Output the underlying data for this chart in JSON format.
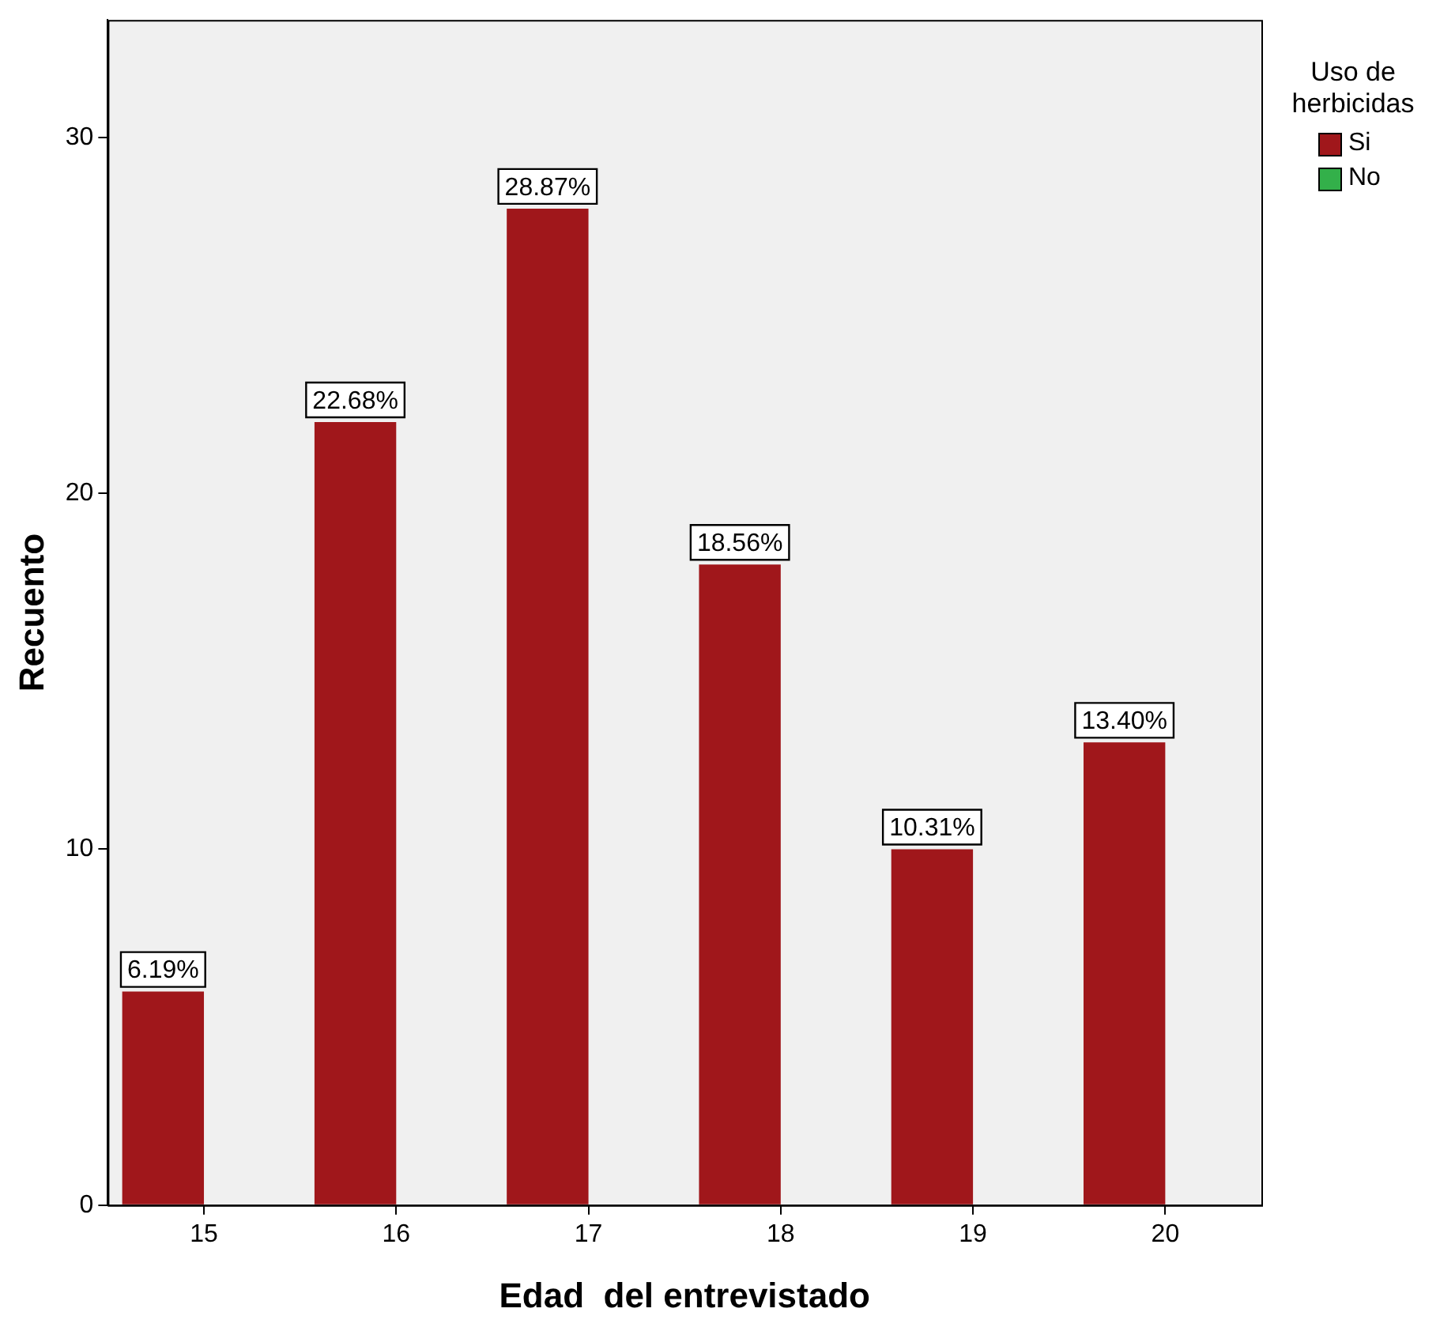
{
  "chart_data": {
    "type": "bar",
    "xlabel": "Edad  del entrevistado",
    "ylabel": "Recuento",
    "legend_title": "Uso de herbicidas",
    "categories": [
      "15",
      "16",
      "17",
      "18",
      "19",
      "20"
    ],
    "series": [
      {
        "name": "Si",
        "color": "#a0171b",
        "values": [
          6,
          22,
          28,
          18,
          10,
          13
        ]
      },
      {
        "name": "No",
        "color": "#33b04a",
        "values": [
          0,
          0,
          0,
          0,
          0,
          0
        ]
      }
    ],
    "annotations": [
      {
        "text": "6.19%",
        "x": "15",
        "y": 6
      },
      {
        "text": "22.68%",
        "x": "16",
        "y": 22
      },
      {
        "text": "28.87%",
        "x": "17",
        "y": 28
      },
      {
        "text": "18.56%",
        "x": "18",
        "y": 18
      },
      {
        "text": "10.31%",
        "x": "19",
        "y": 10
      },
      {
        "text": "13.40%",
        "x": "20",
        "y": 13
      }
    ],
    "ylim": [
      0,
      33.3
    ],
    "yticks": [
      0,
      10,
      20,
      30
    ],
    "grid": false,
    "legend": "top right"
  }
}
